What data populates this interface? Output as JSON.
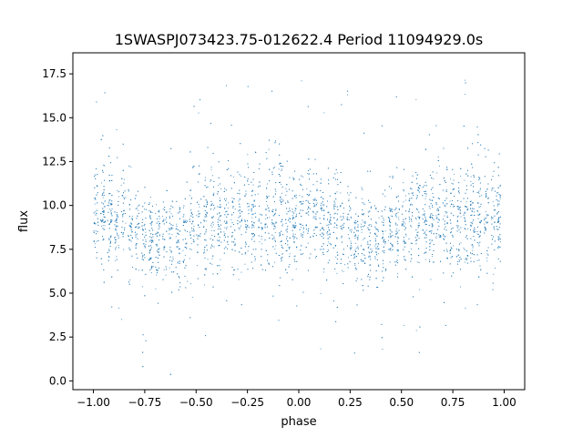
{
  "chart_data": {
    "type": "scatter",
    "title": "1SWASPJ073423.75-012622.4 Period 11094929.0s",
    "xlabel": "phase",
    "ylabel": "flux",
    "xlim": [
      -1.1,
      1.1
    ],
    "ylim": [
      -0.5,
      18.7
    ],
    "x_ticks": [
      -1.0,
      -0.75,
      -0.5,
      -0.25,
      0.0,
      0.25,
      0.5,
      0.75,
      1.0
    ],
    "x_tick_labels": [
      "−1.00",
      "−0.75",
      "−0.50",
      "−0.25",
      "0.00",
      "0.25",
      "0.50",
      "0.75",
      "1.00"
    ],
    "y_ticks": [
      0.0,
      2.5,
      5.0,
      7.5,
      10.0,
      12.5,
      15.0,
      17.5
    ],
    "y_tick_labels": [
      "0.0",
      "2.5",
      "5.0",
      "7.5",
      "10.0",
      "12.5",
      "15.0",
      "17.5"
    ],
    "grid": false,
    "marker_color": "#1f77b4",
    "series": [
      {
        "phase_x_flux_profile": {
          "phase": [
            -1.0,
            -0.95,
            -0.9,
            -0.85,
            -0.8,
            -0.75,
            -0.7,
            -0.65,
            -0.6,
            -0.55,
            -0.5,
            -0.45,
            -0.4,
            -0.35,
            -0.3,
            -0.25,
            -0.2,
            -0.15,
            -0.1,
            -0.05,
            0.0
          ],
          "median_flux": [
            9.5,
            9.8,
            9.0,
            9.2,
            8.8,
            8.5,
            8.0,
            8.4,
            8.0,
            8.5,
            8.8,
            9.2,
            9.2,
            9.3,
            9.0,
            9.0,
            9.4,
            9.6,
            9.6,
            9.2,
            9.0
          ],
          "spread": [
            1.5,
            2.0,
            1.6,
            1.8,
            1.8,
            1.6,
            1.5,
            1.6,
            1.5,
            1.8,
            1.8,
            2.0,
            2.2,
            2.0,
            2.0,
            2.0,
            2.2,
            2.4,
            2.2,
            2.0,
            1.8
          ]
        }
      }
    ]
  }
}
